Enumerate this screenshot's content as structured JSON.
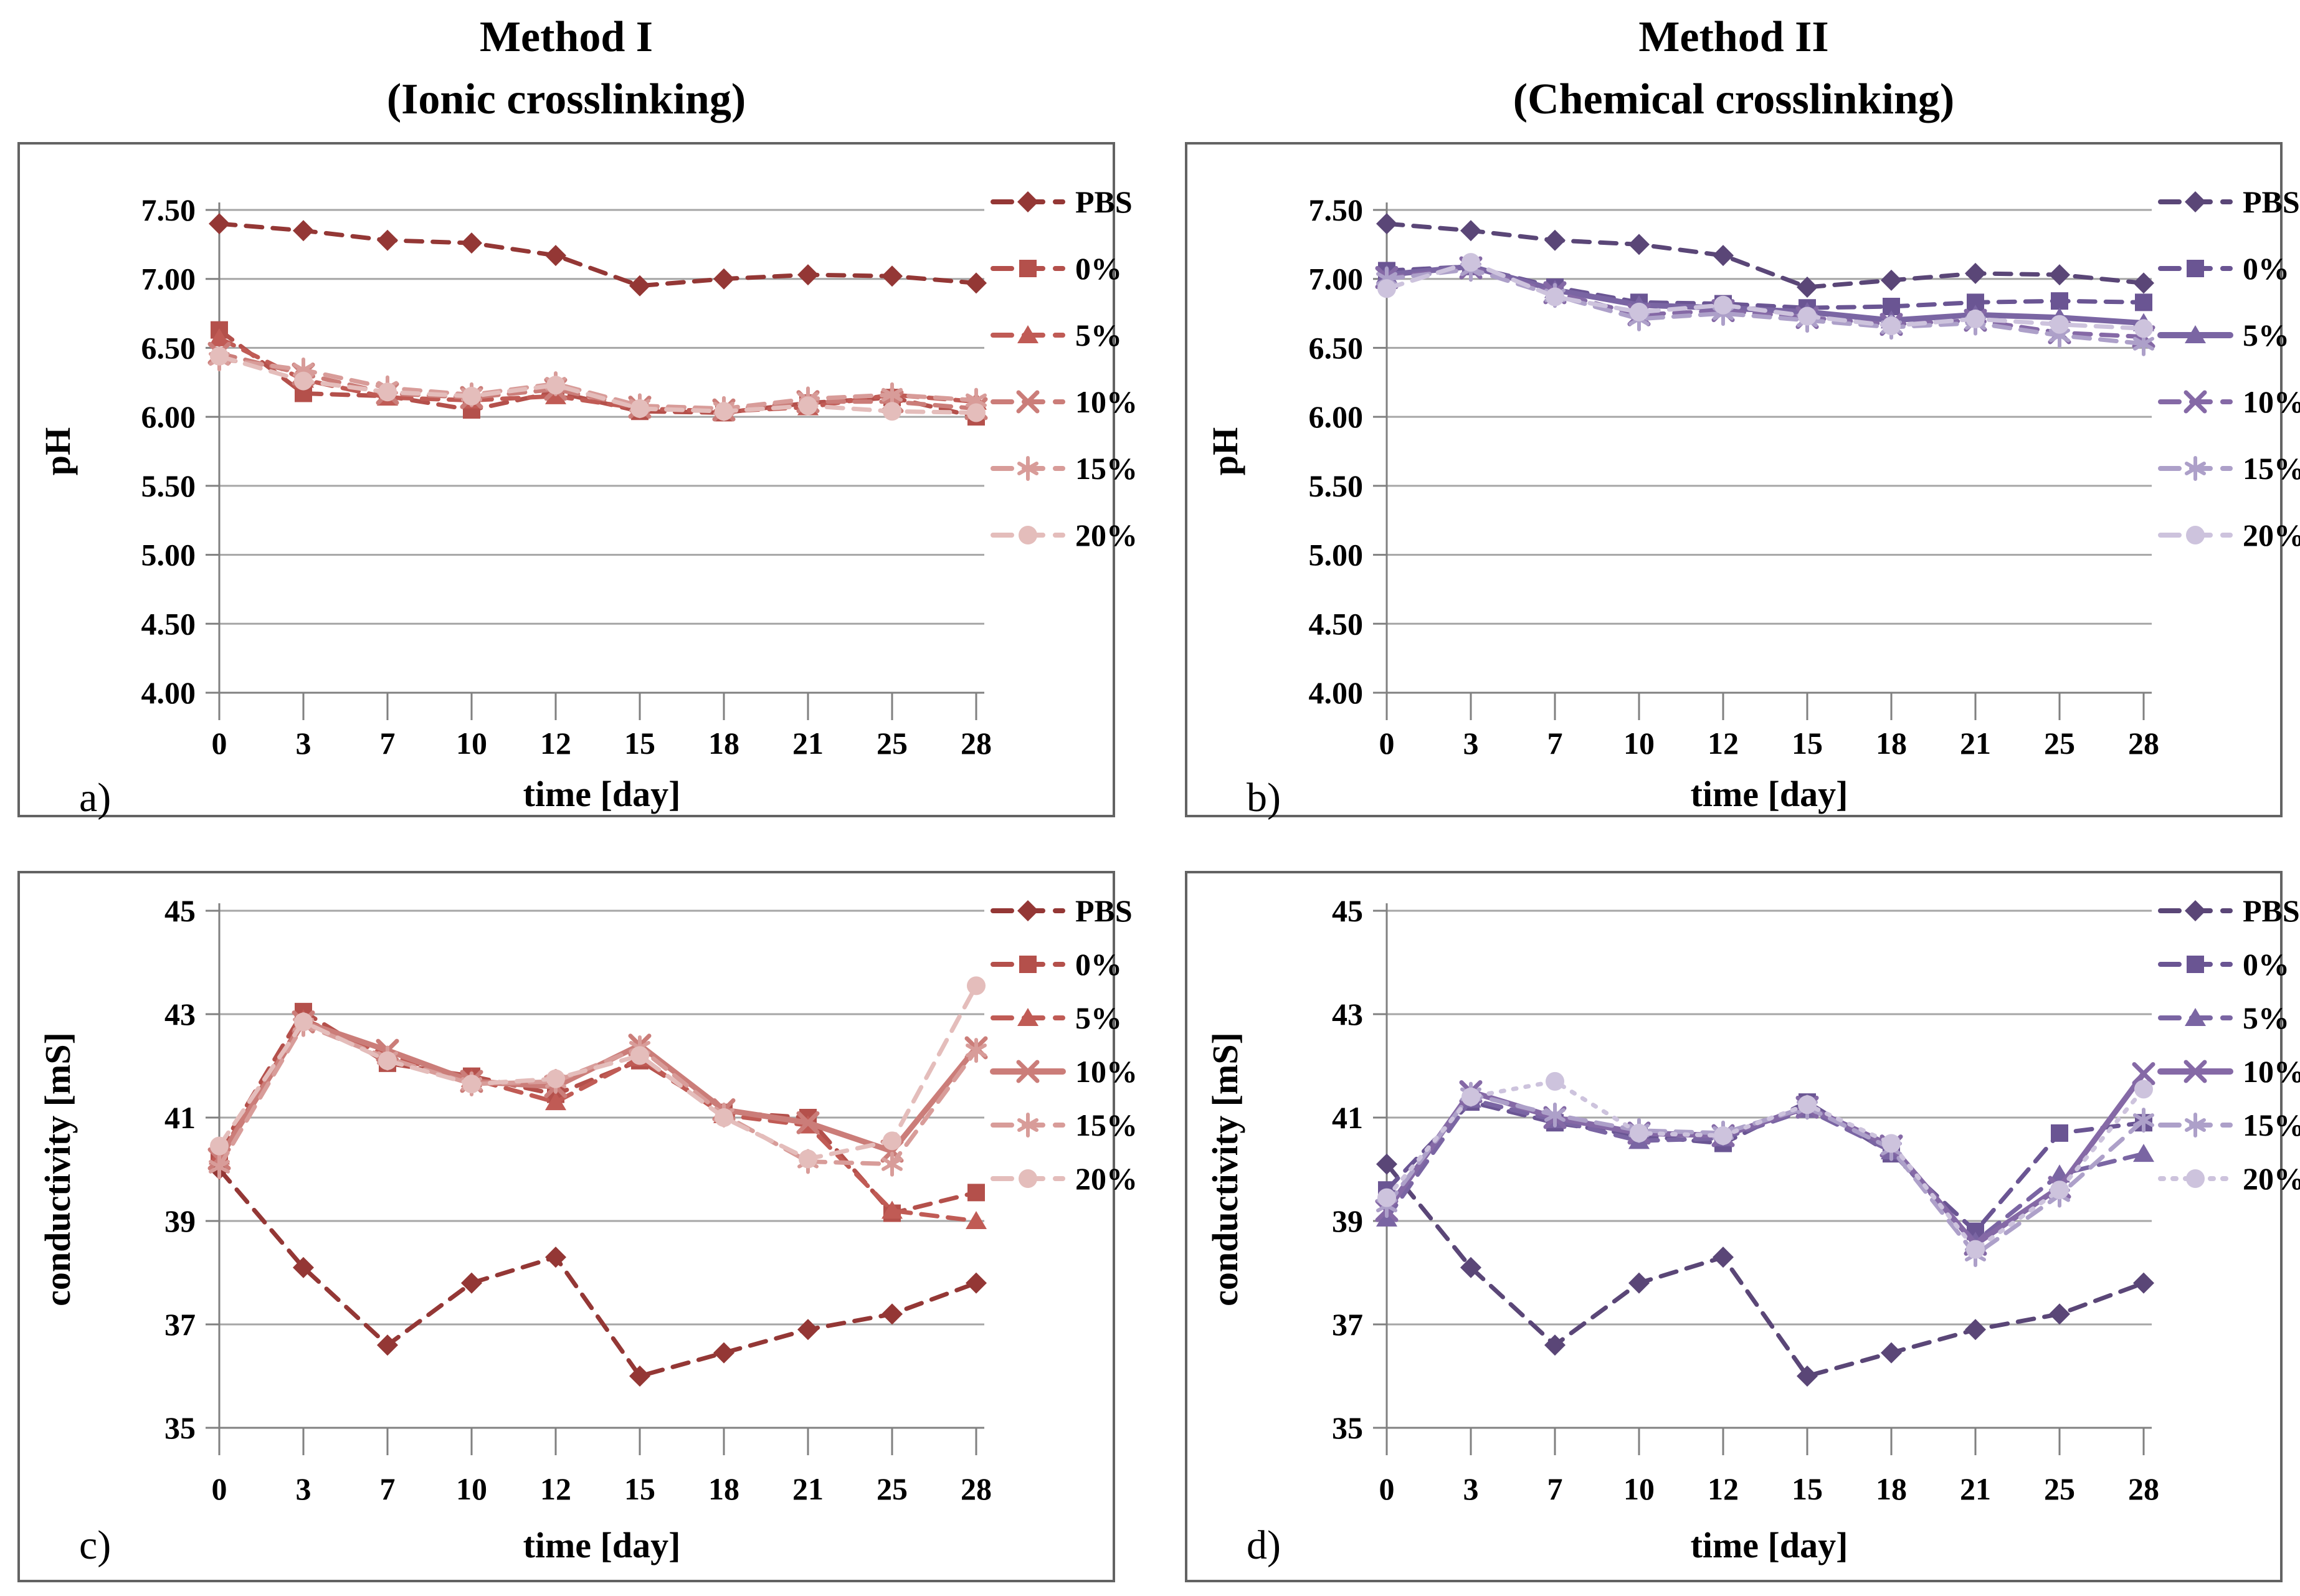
{
  "header": {
    "method1_title": "Method I",
    "method1_subtitle": "(Ionic crosslinking)",
    "method2_title": "Method II",
    "method2_subtitle": "(Chemical crosslinking)"
  },
  "chart_data": [
    {
      "panel": "a",
      "panel_label": "a)",
      "type": "line",
      "y_kind": "ph",
      "xlabel": "time [day]",
      "ylabel": "pH",
      "categories": [
        "0",
        "3",
        "7",
        "10",
        "12",
        "15",
        "18",
        "21",
        "25",
        "28"
      ],
      "ylim": [
        4.0,
        7.5
      ],
      "y_tick_labels": [
        "7.50",
        "7.00",
        "6.50",
        "6.00",
        "5.50",
        "5.00",
        "4.50",
        "4.00"
      ],
      "grid": true,
      "legend_position": "right",
      "series": [
        {
          "name": "PBS",
          "color": "#943735",
          "marker": "diamond",
          "line_style": "dash",
          "values": [
            7.4,
            7.35,
            7.28,
            7.26,
            7.17,
            6.95,
            7.0,
            7.03,
            7.02,
            6.97
          ]
        },
        {
          "name": "0%",
          "color": "#B4504B",
          "marker": "square",
          "line_style": "dash",
          "values": [
            6.63,
            6.17,
            6.15,
            6.05,
            6.18,
            6.04,
            6.03,
            6.1,
            6.14,
            6.0
          ]
        },
        {
          "name": "5%",
          "color": "#C05B55",
          "marker": "triangle",
          "line_style": "dash",
          "values": [
            6.57,
            6.27,
            6.14,
            6.12,
            6.15,
            6.06,
            6.04,
            6.07,
            6.16,
            6.11
          ]
        },
        {
          "name": "10%",
          "color": "#CB7D79",
          "marker": "xmark",
          "line_style": "dash",
          "values": [
            6.46,
            6.31,
            6.17,
            6.14,
            6.2,
            6.07,
            6.05,
            6.11,
            6.11,
            6.06
          ]
        },
        {
          "name": "15%",
          "color": "#D89C99",
          "marker": "asterisk",
          "line_style": "dash",
          "values": [
            6.42,
            6.34,
            6.21,
            6.16,
            6.24,
            6.08,
            6.06,
            6.13,
            6.16,
            6.12
          ]
        },
        {
          "name": "20%",
          "color": "#E4BDBB",
          "marker": "circle",
          "line_style": "dash",
          "values": [
            6.44,
            6.26,
            6.18,
            6.15,
            6.23,
            6.06,
            6.04,
            6.08,
            6.04,
            6.03
          ]
        }
      ]
    },
    {
      "panel": "b",
      "panel_label": "b)",
      "type": "line",
      "y_kind": "ph",
      "xlabel": "time [day]",
      "ylabel": "pH",
      "categories": [
        "0",
        "3",
        "7",
        "10",
        "12",
        "15",
        "18",
        "21",
        "25",
        "28"
      ],
      "ylim": [
        4.0,
        7.5
      ],
      "y_tick_labels": [
        "7.50",
        "7.00",
        "6.50",
        "6.00",
        "5.50",
        "5.00",
        "4.50",
        "4.00"
      ],
      "grid": true,
      "legend_position": "right",
      "series": [
        {
          "name": "PBS",
          "color": "#5A4677",
          "marker": "diamond",
          "line_style": "dash",
          "values": [
            7.4,
            7.35,
            7.28,
            7.25,
            7.17,
            6.94,
            6.99,
            7.04,
            7.03,
            6.97
          ]
        },
        {
          "name": "0%",
          "color": "#6A5593",
          "marker": "square",
          "line_style": "dash",
          "values": [
            7.06,
            7.09,
            6.94,
            6.83,
            6.82,
            6.79,
            6.8,
            6.83,
            6.84,
            6.83
          ]
        },
        {
          "name": "5%",
          "color": "#7A65A3",
          "marker": "triangle",
          "line_style": "solid",
          "values": [
            7.03,
            7.09,
            6.92,
            6.81,
            6.79,
            6.76,
            6.7,
            6.74,
            6.72,
            6.68
          ]
        },
        {
          "name": "10%",
          "color": "#8569A6",
          "marker": "xmark",
          "line_style": "dash",
          "values": [
            7.01,
            7.08,
            6.9,
            6.74,
            6.77,
            6.72,
            6.67,
            6.7,
            6.61,
            6.58
          ]
        },
        {
          "name": "15%",
          "color": "#ADA0C9",
          "marker": "asterisk",
          "line_style": "dash",
          "values": [
            7.0,
            7.07,
            6.88,
            6.71,
            6.75,
            6.7,
            6.65,
            6.68,
            6.59,
            6.53
          ]
        },
        {
          "name": "20%",
          "color": "#CDC3DD",
          "marker": "circle",
          "line_style": "dash",
          "values": [
            6.93,
            7.12,
            6.87,
            6.76,
            6.81,
            6.73,
            6.66,
            6.71,
            6.67,
            6.64
          ]
        }
      ]
    },
    {
      "panel": "c",
      "panel_label": "c)",
      "type": "line",
      "y_kind": "cond",
      "xlabel": "time [day]",
      "ylabel": "conductivity [mS]",
      "categories": [
        "0",
        "3",
        "7",
        "10",
        "12",
        "15",
        "18",
        "21",
        "25",
        "28"
      ],
      "ylim": [
        35,
        45
      ],
      "y_tick_labels": [
        "45",
        "43",
        "41",
        "39",
        "37",
        "35"
      ],
      "grid": true,
      "legend_position": "right",
      "series": [
        {
          "name": "PBS",
          "color": "#943735",
          "marker": "diamond",
          "line_style": "dash",
          "values": [
            40.0,
            38.1,
            36.6,
            37.8,
            38.3,
            36.0,
            36.45,
            36.9,
            37.2,
            37.8
          ]
        },
        {
          "name": "0%",
          "color": "#B4504B",
          "marker": "square",
          "line_style": "dash",
          "values": [
            40.35,
            43.05,
            42.05,
            41.8,
            41.45,
            42.1,
            41.1,
            41.0,
            39.15,
            39.55
          ]
        },
        {
          "name": "5%",
          "color": "#C05B55",
          "marker": "triangle",
          "line_style": "dash",
          "values": [
            40.25,
            42.9,
            42.2,
            41.75,
            41.3,
            42.15,
            41.05,
            40.85,
            39.2,
            39.0
          ]
        },
        {
          "name": "10%",
          "color": "#CB7D79",
          "marker": "xmark",
          "line_style": "solid",
          "values": [
            40.2,
            42.85,
            42.3,
            41.7,
            41.6,
            42.4,
            41.15,
            40.9,
            40.35,
            42.35
          ]
        },
        {
          "name": "15%",
          "color": "#D89C99",
          "marker": "asterisk",
          "line_style": "dash",
          "values": [
            40.05,
            42.8,
            42.15,
            41.65,
            41.7,
            42.35,
            41.05,
            40.15,
            40.1,
            42.3
          ]
        },
        {
          "name": "20%",
          "color": "#E4BDBB",
          "marker": "circle",
          "line_style": "dash",
          "values": [
            40.45,
            42.85,
            42.1,
            41.65,
            41.75,
            42.2,
            41.0,
            40.2,
            40.55,
            43.55
          ]
        }
      ]
    },
    {
      "panel": "d",
      "panel_label": "d)",
      "type": "line",
      "y_kind": "cond",
      "xlabel": "time [day]",
      "ylabel": "conductivity [mS]",
      "categories": [
        "0",
        "3",
        "7",
        "10",
        "12",
        "15",
        "18",
        "21",
        "25",
        "28"
      ],
      "ylim": [
        35,
        45
      ],
      "y_tick_labels": [
        "45",
        "43",
        "41",
        "39",
        "37",
        "35"
      ],
      "grid": true,
      "legend_position": "right",
      "series": [
        {
          "name": "PBS",
          "color": "#5A4677",
          "marker": "diamond",
          "line_style": "dash",
          "values": [
            40.1,
            38.1,
            36.6,
            37.8,
            38.3,
            36.0,
            36.45,
            36.9,
            37.2,
            37.8
          ]
        },
        {
          "name": "0%",
          "color": "#6A5593",
          "marker": "square",
          "line_style": "dash",
          "values": [
            39.6,
            41.3,
            40.9,
            40.65,
            40.5,
            41.3,
            40.3,
            38.8,
            40.7,
            40.9
          ]
        },
        {
          "name": "5%",
          "color": "#7A65A3",
          "marker": "triangle",
          "line_style": "dash",
          "values": [
            39.05,
            41.35,
            40.95,
            40.55,
            40.6,
            41.15,
            40.35,
            38.6,
            39.9,
            40.3
          ]
        },
        {
          "name": "10%",
          "color": "#8569A6",
          "marker": "xmark",
          "line_style": "solid",
          "values": [
            39.2,
            41.5,
            41.0,
            40.7,
            40.65,
            41.2,
            40.45,
            38.55,
            39.65,
            41.85
          ]
        },
        {
          "name": "15%",
          "color": "#ADA0C9",
          "marker": "asterisk",
          "line_style": "dash",
          "values": [
            39.3,
            41.45,
            41.05,
            40.75,
            40.7,
            41.2,
            40.4,
            38.35,
            39.5,
            40.95
          ]
        },
        {
          "name": "20%",
          "color": "#CDC3DD",
          "marker": "circle",
          "line_style": "dot",
          "values": [
            39.45,
            41.4,
            41.7,
            40.7,
            40.65,
            41.25,
            40.5,
            38.45,
            39.6,
            41.55
          ]
        }
      ]
    }
  ]
}
